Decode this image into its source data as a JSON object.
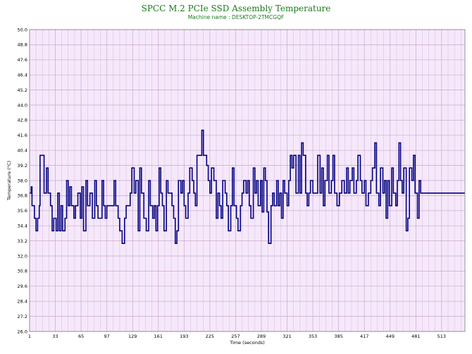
{
  "chart_data": {
    "type": "line",
    "title": "SPCC M.2 PCIe SSD Assembly Temperature",
    "subtitle": "Machine name : DESKTOP-2TMCGQF",
    "xlabel": "Time (seconds)",
    "ylabel": "Temperature (°C)",
    "xlim": [
      1,
      542
    ],
    "ylim": [
      26.0,
      50.0
    ],
    "x_ticks": [
      "1",
      "33",
      "65",
      "97",
      "129",
      "161",
      "193",
      "225",
      "257",
      "289",
      "321",
      "353",
      "385",
      "417",
      "449",
      "481",
      "513"
    ],
    "y_ticks": [
      "26.0",
      "27.2",
      "28.4",
      "29.6",
      "30.8",
      "32.0",
      "33.2",
      "34.4",
      "35.6",
      "36.8",
      "38.0",
      "39.2",
      "40.4",
      "41.6",
      "42.8",
      "44.0",
      "45.2",
      "46.4",
      "47.6",
      "48.8",
      "50.0"
    ],
    "grid": true,
    "legend": "none",
    "colors": {
      "line": "#000080",
      "plot_bg": "#f6e8fb",
      "grid": "#c9a8cc",
      "title": "#1a7a1a"
    },
    "series": [
      {
        "values": [
          [
            1,
            37
          ],
          [
            3,
            37.5
          ],
          [
            4,
            36
          ],
          [
            7,
            35
          ],
          [
            9,
            34
          ],
          [
            11,
            35
          ],
          [
            13,
            36
          ],
          [
            14,
            40
          ],
          [
            19,
            37
          ],
          [
            22,
            39
          ],
          [
            24,
            37
          ],
          [
            27,
            36
          ],
          [
            29,
            34
          ],
          [
            31,
            35
          ],
          [
            34,
            34
          ],
          [
            36,
            37
          ],
          [
            38,
            34
          ],
          [
            40,
            36
          ],
          [
            42,
            34
          ],
          [
            45,
            35
          ],
          [
            47,
            38
          ],
          [
            49,
            36
          ],
          [
            51,
            37.5
          ],
          [
            53,
            36
          ],
          [
            56,
            35
          ],
          [
            58,
            36
          ],
          [
            61,
            37
          ],
          [
            64,
            35
          ],
          [
            66,
            37.5
          ],
          [
            68,
            34
          ],
          [
            71,
            38
          ],
          [
            73,
            36
          ],
          [
            76,
            37
          ],
          [
            79,
            35
          ],
          [
            82,
            38
          ],
          [
            84,
            36
          ],
          [
            86,
            35
          ],
          [
            91,
            38
          ],
          [
            93,
            36
          ],
          [
            95,
            35
          ],
          [
            97,
            36
          ],
          [
            100,
            36
          ],
          [
            102,
            36
          ],
          [
            104,
            36
          ],
          [
            106,
            38
          ],
          [
            108,
            36
          ],
          [
            111,
            35
          ],
          [
            113,
            34
          ],
          [
            116,
            33
          ],
          [
            119,
            35
          ],
          [
            121,
            36
          ],
          [
            124,
            36
          ],
          [
            126,
            37
          ],
          [
            128,
            39
          ],
          [
            131,
            37
          ],
          [
            133,
            38
          ],
          [
            136,
            34
          ],
          [
            138,
            39
          ],
          [
            140,
            37
          ],
          [
            143,
            35
          ],
          [
            146,
            34
          ],
          [
            149,
            38
          ],
          [
            151,
            36
          ],
          [
            154,
            35
          ],
          [
            156,
            36
          ],
          [
            158,
            34
          ],
          [
            160,
            36
          ],
          [
            162,
            39
          ],
          [
            164,
            37
          ],
          [
            166,
            36
          ],
          [
            168,
            34
          ],
          [
            171,
            38
          ],
          [
            173,
            37
          ],
          [
            176,
            37
          ],
          [
            178,
            36
          ],
          [
            180,
            35
          ],
          [
            182,
            33
          ],
          [
            184,
            34
          ],
          [
            186,
            38
          ],
          [
            189,
            37
          ],
          [
            191,
            38
          ],
          [
            193,
            36
          ],
          [
            195,
            35
          ],
          [
            198,
            37
          ],
          [
            200,
            39
          ],
          [
            203,
            38
          ],
          [
            205,
            37
          ],
          [
            207,
            36
          ],
          [
            209,
            40
          ],
          [
            213,
            40
          ],
          [
            215,
            42
          ],
          [
            217,
            40
          ],
          [
            221,
            39.2
          ],
          [
            223,
            38
          ],
          [
            225,
            37
          ],
          [
            227,
            39
          ],
          [
            230,
            38
          ],
          [
            233,
            35
          ],
          [
            235,
            37
          ],
          [
            237,
            36
          ],
          [
            239,
            35
          ],
          [
            241,
            38
          ],
          [
            244,
            37
          ],
          [
            246,
            36
          ],
          [
            248,
            34
          ],
          [
            251,
            36
          ],
          [
            253,
            39
          ],
          [
            255,
            36
          ],
          [
            258,
            35
          ],
          [
            260,
            34
          ],
          [
            263,
            36
          ],
          [
            265,
            37
          ],
          [
            267,
            38
          ],
          [
            270,
            37
          ],
          [
            272,
            38
          ],
          [
            274,
            36
          ],
          [
            276,
            35
          ],
          [
            279,
            39
          ],
          [
            281,
            37
          ],
          [
            283,
            38
          ],
          [
            285,
            36
          ],
          [
            288,
            38
          ],
          [
            290,
            35.5
          ],
          [
            292,
            39
          ],
          [
            294,
            38
          ],
          [
            296,
            35.5
          ],
          [
            298,
            33
          ],
          [
            301,
            36
          ],
          [
            303,
            37
          ],
          [
            305,
            36
          ],
          [
            308,
            38
          ],
          [
            310,
            36
          ],
          [
            312,
            37
          ],
          [
            314,
            35
          ],
          [
            316,
            38
          ],
          [
            318,
            37
          ],
          [
            321,
            36
          ],
          [
            323,
            38
          ],
          [
            325,
            40
          ],
          [
            327,
            39
          ],
          [
            329,
            40
          ],
          [
            332,
            37
          ],
          [
            335,
            40
          ],
          [
            337,
            37
          ],
          [
            339,
            41
          ],
          [
            341,
            40
          ],
          [
            344,
            37
          ],
          [
            346,
            36
          ],
          [
            348,
            37
          ],
          [
            350,
            38
          ],
          [
            353,
            37
          ],
          [
            356,
            37
          ],
          [
            359,
            40
          ],
          [
            362,
            37
          ],
          [
            364,
            39
          ],
          [
            366,
            36
          ],
          [
            368,
            38
          ],
          [
            371,
            40
          ],
          [
            373,
            37
          ],
          [
            376,
            38
          ],
          [
            378,
            40
          ],
          [
            380,
            37
          ],
          [
            383,
            36
          ],
          [
            386,
            37
          ],
          [
            389,
            38
          ],
          [
            392,
            37
          ],
          [
            395,
            39
          ],
          [
            397,
            37
          ],
          [
            399,
            38
          ],
          [
            402,
            39
          ],
          [
            404,
            37
          ],
          [
            407,
            38
          ],
          [
            409,
            40
          ],
          [
            412,
            38
          ],
          [
            414,
            37
          ],
          [
            417,
            38
          ],
          [
            419,
            36
          ],
          [
            422,
            37
          ],
          [
            425,
            38
          ],
          [
            427,
            39
          ],
          [
            430,
            41
          ],
          [
            432,
            37
          ],
          [
            435,
            36
          ],
          [
            437,
            39
          ],
          [
            440,
            37
          ],
          [
            442,
            38
          ],
          [
            444,
            35
          ],
          [
            446,
            38
          ],
          [
            448,
            36
          ],
          [
            451,
            39
          ],
          [
            453,
            37
          ],
          [
            456,
            36
          ],
          [
            458,
            38
          ],
          [
            460,
            41
          ],
          [
            462,
            38
          ],
          [
            464,
            37
          ],
          [
            466,
            39
          ],
          [
            469,
            34
          ],
          [
            471,
            35
          ],
          [
            473,
            39
          ],
          [
            476,
            38
          ],
          [
            478,
            40
          ],
          [
            480,
            37
          ],
          [
            483,
            35
          ],
          [
            485,
            38
          ],
          [
            487,
            37
          ]
        ]
      }
    ]
  }
}
